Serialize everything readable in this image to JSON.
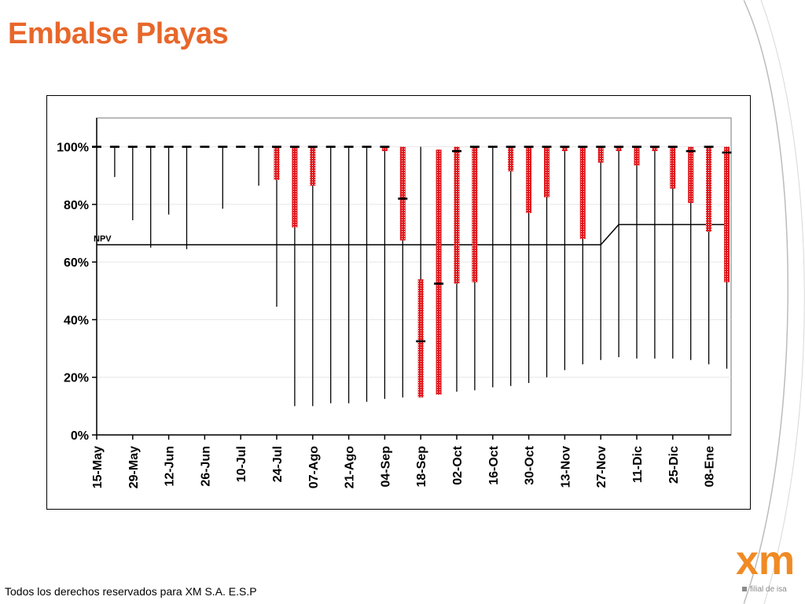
{
  "slide": {
    "title": "Embalse Playas",
    "footer": "Todos los derechos reservados para XM S.A. E.S.P",
    "logo_text": "xm",
    "logo_subtext": "filial de isa"
  },
  "colors": {
    "title": "#e8672a",
    "range_bar": "#e0191e",
    "historic_line": "#000000",
    "npv_line": "#000000",
    "logo_orange": "#f08a24"
  },
  "chart_data": {
    "type": "range",
    "title": "",
    "xlabel": "",
    "ylabel": "",
    "ylim": [
      0,
      110
    ],
    "yticks": [
      0,
      20,
      40,
      60,
      80,
      100
    ],
    "ytick_labels": [
      "0%",
      "20%",
      "40%",
      "60%",
      "80%",
      "100%"
    ],
    "grid": "horizontal",
    "xtick_labels": [
      "15-May",
      "29-May",
      "12-Jun",
      "26-Jun",
      "10-Jul",
      "24-Jul",
      "07-Ago",
      "21-Ago",
      "04-Sep",
      "18-Sep",
      "02-Oct",
      "16-Oct",
      "30-Oct",
      "13-Nov",
      "27-Nov",
      "11-Dic",
      "25-Dic",
      "08-Ene"
    ],
    "npv_label": "NPV",
    "npv": [
      {
        "week": 0,
        "value": 66
      },
      {
        "week": 28,
        "value": 66
      },
      {
        "week": 29,
        "value": 73
      },
      {
        "week": 35,
        "value": 73
      }
    ],
    "series": [
      {
        "week": 0,
        "hist_min": 100,
        "hist_max": 100,
        "range_min": null,
        "range_max": null,
        "marker": 100
      },
      {
        "week": 1,
        "hist_min": 89.5,
        "hist_max": 100,
        "range_min": null,
        "range_max": null,
        "marker": 100
      },
      {
        "week": 2,
        "hist_min": 74.5,
        "hist_max": 100,
        "range_min": null,
        "range_max": null,
        "marker": 100
      },
      {
        "week": 3,
        "hist_min": 65,
        "hist_max": 100,
        "range_min": null,
        "range_max": null,
        "marker": 100
      },
      {
        "week": 4,
        "hist_min": 76.5,
        "hist_max": 100,
        "range_min": null,
        "range_max": null,
        "marker": 100
      },
      {
        "week": 5,
        "hist_min": 64.5,
        "hist_max": 100,
        "range_min": null,
        "range_max": null,
        "marker": 100
      },
      {
        "week": 6,
        "hist_min": 100,
        "hist_max": 100,
        "range_min": null,
        "range_max": null,
        "marker": 100
      },
      {
        "week": 7,
        "hist_min": 78.5,
        "hist_max": 100,
        "range_min": null,
        "range_max": null,
        "marker": 100
      },
      {
        "week": 8,
        "hist_min": 100,
        "hist_max": 100,
        "range_min": null,
        "range_max": null,
        "marker": 100
      },
      {
        "week": 9,
        "hist_min": 86.5,
        "hist_max": 100,
        "range_min": null,
        "range_max": null,
        "marker": 100
      },
      {
        "week": 10,
        "hist_min": 44.5,
        "hist_max": 100,
        "range_min": 88.5,
        "range_max": 100,
        "marker": 100
      },
      {
        "week": 11,
        "hist_min": 10,
        "hist_max": 100,
        "range_min": 72,
        "range_max": 100,
        "marker": 100
      },
      {
        "week": 12,
        "hist_min": 10,
        "hist_max": 100,
        "range_min": 86.5,
        "range_max": 100,
        "marker": 100
      },
      {
        "week": 13,
        "hist_min": 11,
        "hist_max": 100,
        "range_min": null,
        "range_max": null,
        "marker": 100
      },
      {
        "week": 14,
        "hist_min": 11,
        "hist_max": 100,
        "range_min": null,
        "range_max": null,
        "marker": 100
      },
      {
        "week": 15,
        "hist_min": 11.5,
        "hist_max": 100,
        "range_min": null,
        "range_max": null,
        "marker": 100
      },
      {
        "week": 16,
        "hist_min": 12.5,
        "hist_max": 100,
        "range_min": 98.5,
        "range_max": 100,
        "marker": 100
      },
      {
        "week": 17,
        "hist_min": 13,
        "hist_max": 100,
        "range_min": 67.5,
        "range_max": 100,
        "marker": 82
      },
      {
        "week": 18,
        "hist_min": 13,
        "hist_max": 100,
        "range_min": 13,
        "range_max": 54,
        "marker": 32.5
      },
      {
        "week": 19,
        "hist_min": 14,
        "hist_max": 99,
        "range_min": 14,
        "range_max": 99,
        "marker": 52.5
      },
      {
        "week": 20,
        "hist_min": 15,
        "hist_max": 100,
        "range_min": 52.5,
        "range_max": 100,
        "marker": 98.5
      },
      {
        "week": 21,
        "hist_min": 15.5,
        "hist_max": 100,
        "range_min": 53,
        "range_max": 100,
        "marker": 100
      },
      {
        "week": 22,
        "hist_min": 16.5,
        "hist_max": 100,
        "range_min": null,
        "range_max": null,
        "marker": 100
      },
      {
        "week": 23,
        "hist_min": 17,
        "hist_max": 100,
        "range_min": 91.5,
        "range_max": 100,
        "marker": 100
      },
      {
        "week": 24,
        "hist_min": 18,
        "hist_max": 100,
        "range_min": 77,
        "range_max": 100,
        "marker": 100
      },
      {
        "week": 25,
        "hist_min": 20,
        "hist_max": 100,
        "range_min": 82.5,
        "range_max": 100,
        "marker": 100
      },
      {
        "week": 26,
        "hist_min": 22.5,
        "hist_max": 100,
        "range_min": 98.5,
        "range_max": 100,
        "marker": 100
      },
      {
        "week": 27,
        "hist_min": 24.5,
        "hist_max": 100,
        "range_min": 68,
        "range_max": 100,
        "marker": 100
      },
      {
        "week": 28,
        "hist_min": 26,
        "hist_max": 100,
        "range_min": 94.5,
        "range_max": 100,
        "marker": 100
      },
      {
        "week": 29,
        "hist_min": 27,
        "hist_max": 100,
        "range_min": 98.5,
        "range_max": 100,
        "marker": 100
      },
      {
        "week": 30,
        "hist_min": 26.5,
        "hist_max": 100,
        "range_min": 93.5,
        "range_max": 100,
        "marker": 100
      },
      {
        "week": 31,
        "hist_min": 26.5,
        "hist_max": 100,
        "range_min": 98.5,
        "range_max": 100,
        "marker": 100
      },
      {
        "week": 32,
        "hist_min": 26.5,
        "hist_max": 100,
        "range_min": 85.5,
        "range_max": 100,
        "marker": 100
      },
      {
        "week": 33,
        "hist_min": 26,
        "hist_max": 100,
        "range_min": 80.5,
        "range_max": 100,
        "marker": 98.5
      },
      {
        "week": 34,
        "hist_min": 24.5,
        "hist_max": 100,
        "range_min": 70.5,
        "range_max": 100,
        "marker": 100
      },
      {
        "week": 35,
        "hist_min": 23,
        "hist_max": 100,
        "range_min": 53,
        "range_max": 100,
        "marker": 98
      }
    ]
  }
}
